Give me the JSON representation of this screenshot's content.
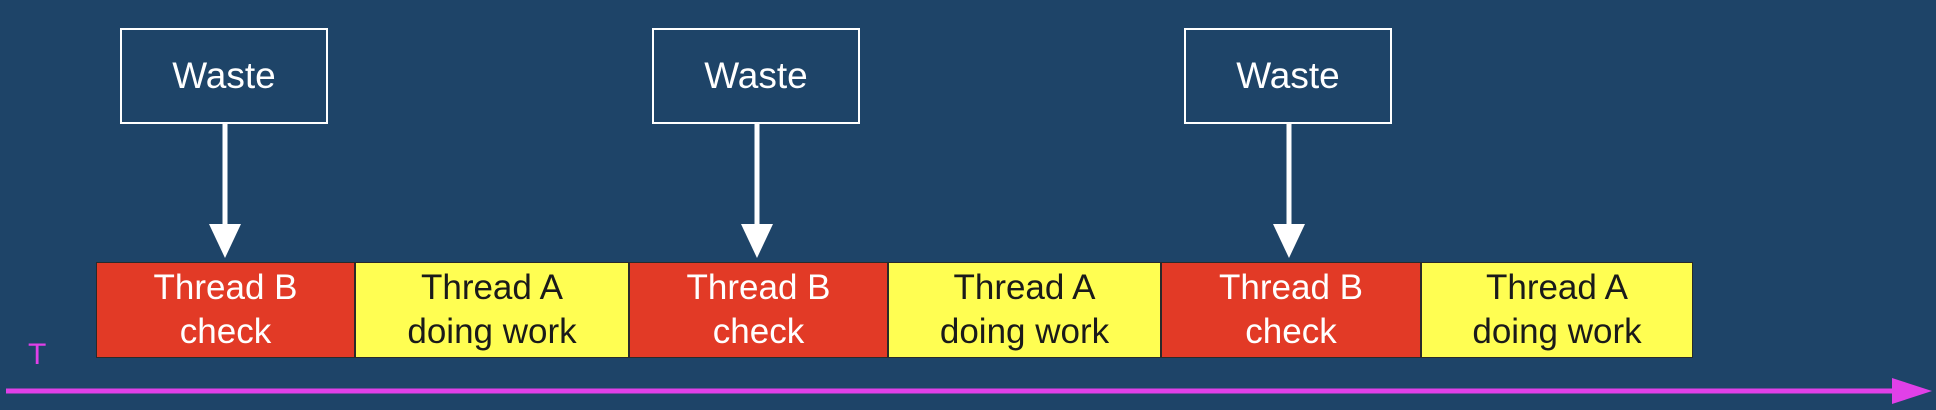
{
  "waste_boxes": [
    {
      "label": "Waste"
    },
    {
      "label": "Waste"
    },
    {
      "label": "Waste"
    }
  ],
  "timeline_blocks": [
    {
      "thread": "B",
      "line1": "Thread B",
      "line2": "check"
    },
    {
      "thread": "A",
      "line1": "Thread A",
      "line2": "doing work"
    },
    {
      "thread": "B",
      "line1": "Thread B",
      "line2": "check"
    },
    {
      "thread": "A",
      "line1": "Thread A",
      "line2": "doing work"
    },
    {
      "thread": "B",
      "line1": "Thread B",
      "line2": "check"
    },
    {
      "thread": "A",
      "line1": "Thread A",
      "line2": "doing work"
    }
  ],
  "time_axis": {
    "label": "T"
  },
  "colors": {
    "background": "#1e4468",
    "thread_b": "#e23a26",
    "thread_a": "#fffe52",
    "axis": "#e040e8",
    "waste": "#ffffff"
  }
}
